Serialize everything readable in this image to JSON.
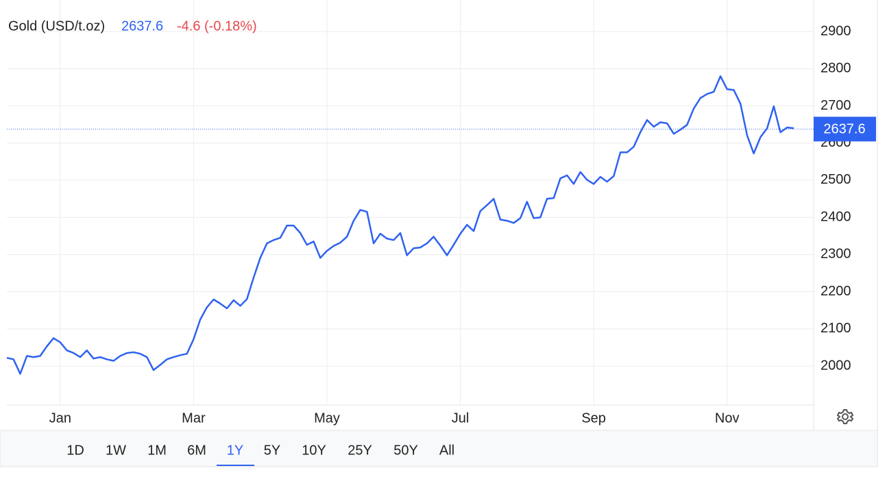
{
  "header": {
    "instrument": "Gold (USD/t.oz)",
    "price": 2637.6,
    "change": "-4.6 (-0.18%)"
  },
  "chart_data": {
    "type": "line",
    "categories": [
      null,
      null,
      null,
      null,
      null,
      null,
      null,
      null,
      "Jan",
      null,
      null,
      null,
      null,
      null,
      null,
      null,
      null,
      null,
      null,
      null,
      null,
      null,
      null,
      null,
      null,
      null,
      null,
      null,
      "Mar",
      null,
      null,
      null,
      null,
      null,
      null,
      null,
      null,
      null,
      null,
      null,
      null,
      null,
      null,
      null,
      null,
      null,
      null,
      null,
      "May",
      null,
      null,
      null,
      null,
      null,
      null,
      null,
      null,
      null,
      null,
      null,
      null,
      null,
      null,
      null,
      null,
      null,
      null,
      null,
      "Jul",
      null,
      null,
      null,
      null,
      null,
      null,
      null,
      null,
      null,
      null,
      null,
      null,
      null,
      null,
      null,
      null,
      null,
      null,
      null,
      "Sep",
      null,
      null,
      null,
      null,
      null,
      null,
      null,
      null,
      null,
      null,
      null,
      null,
      null,
      null,
      null,
      null,
      null,
      null,
      null,
      "Nov",
      null,
      null,
      null,
      null,
      null,
      null,
      null,
      null,
      null,
      null
    ],
    "series": [
      {
        "name": "Gold",
        "color": "#2e62f0",
        "values": [
          2022,
          2018,
          1979,
          2027,
          2024,
          2027,
          2053,
          2075,
          2064,
          2042,
          2035,
          2024,
          2042,
          2020,
          2024,
          2018,
          2014,
          2027,
          2035,
          2037,
          2033,
          2024,
          1989,
          2003,
          2018,
          2024,
          2029,
          2033,
          2072,
          2125,
          2158,
          2179,
          2168,
          2155,
          2177,
          2162,
          2180,
          2238,
          2291,
          2330,
          2339,
          2345,
          2378,
          2378,
          2358,
          2326,
          2335,
          2291,
          2310,
          2323,
          2332,
          2348,
          2391,
          2420,
          2415,
          2330,
          2356,
          2343,
          2339,
          2358,
          2298,
          2317,
          2319,
          2330,
          2348,
          2324,
          2298,
          2326,
          2356,
          2380,
          2363,
          2417,
          2433,
          2450,
          2394,
          2391,
          2385,
          2398,
          2442,
          2398,
          2400,
          2450,
          2452,
          2505,
          2513,
          2490,
          2522,
          2501,
          2490,
          2509,
          2496,
          2511,
          2575,
          2575,
          2590,
          2629,
          2662,
          2644,
          2656,
          2653,
          2625,
          2636,
          2649,
          2693,
          2721,
          2732,
          2738,
          2780,
          2745,
          2743,
          2706,
          2621,
          2572,
          2616,
          2640,
          2699,
          2629,
          2642,
          2640
        ]
      }
    ],
    "last_value": 2637.6,
    "ylim": [
      1895,
      2985
    ],
    "yticks": [
      2000,
      2100,
      2200,
      2300,
      2400,
      2500,
      2600,
      2700,
      2800,
      2900
    ],
    "grid": true
  },
  "range_buttons": [
    "1D",
    "1W",
    "1M",
    "6M",
    "1Y",
    "5Y",
    "10Y",
    "25Y",
    "50Y",
    "All"
  ],
  "selected_range": 4
}
